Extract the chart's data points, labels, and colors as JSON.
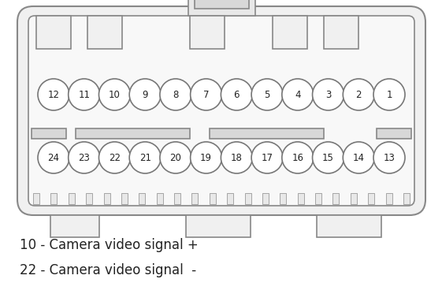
{
  "background_color": "#ffffff",
  "body_fill": "#f0f0f0",
  "body_fill2": "#e8e8e8",
  "outline_color": "#888888",
  "line_width": 1.2,
  "pin_outline_color": "#777777",
  "pin_bg_color": "#ffffff",
  "text_color": "#222222",
  "top_row_pins": [
    12,
    11,
    10,
    9,
    8,
    7,
    6,
    5,
    4,
    3,
    2,
    1
  ],
  "bottom_row_pins": [
    24,
    23,
    22,
    21,
    20,
    19,
    18,
    17,
    16,
    15,
    14,
    13
  ],
  "label_lines": [
    "10 - Camera video signal +",
    "22 - Camera video signal  -"
  ],
  "label_fontsize": 12,
  "pin_fontsize": 8.5,
  "fig_w": 5.61,
  "fig_h": 3.87,
  "dpi": 100
}
